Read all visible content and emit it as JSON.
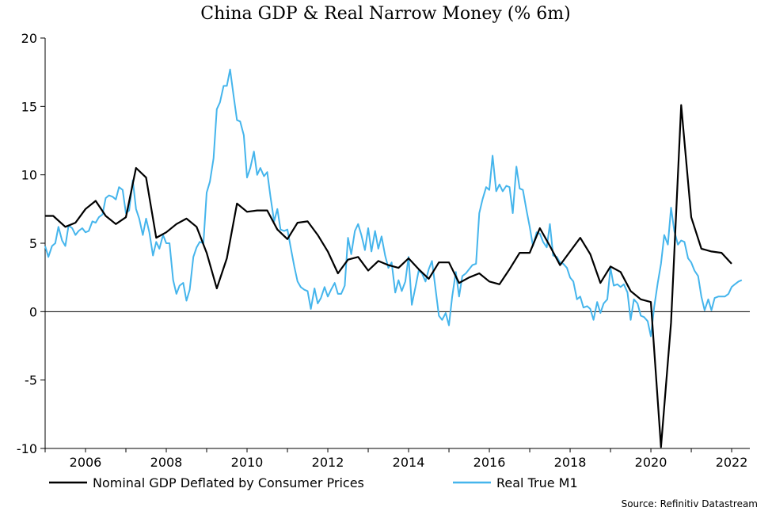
{
  "chart_data": {
    "type": "line",
    "title": "China GDP & Real Narrow Money (% 6m)",
    "xlabel": "",
    "ylabel": "",
    "xlim": [
      2005.0,
      2022.45
    ],
    "ylim": [
      -10,
      20
    ],
    "y_ticks": [
      -10,
      -5,
      0,
      5,
      10,
      15,
      20
    ],
    "x_ticks": [
      2006,
      2008,
      2010,
      2012,
      2014,
      2016,
      2018,
      2020,
      2022
    ],
    "zero_line": true,
    "grid": false,
    "legend": "bottom",
    "source": "Source: Refinitiv Datastream",
    "series": [
      {
        "name": "Nominal GDP Deflated by Consumer Prices",
        "color": "#000000",
        "points": [
          [
            2005.0,
            7.0
          ],
          [
            2005.2,
            7.0
          ],
          [
            2005.5,
            6.2
          ],
          [
            2005.75,
            6.5
          ],
          [
            2006.0,
            7.5
          ],
          [
            2006.25,
            8.1
          ],
          [
            2006.5,
            7.0
          ],
          [
            2006.75,
            6.4
          ],
          [
            2007.0,
            6.9
          ],
          [
            2007.25,
            10.5
          ],
          [
            2007.5,
            9.8
          ],
          [
            2007.75,
            5.4
          ],
          [
            2008.0,
            5.8
          ],
          [
            2008.25,
            6.4
          ],
          [
            2008.5,
            6.8
          ],
          [
            2008.75,
            6.2
          ],
          [
            2009.0,
            4.3
          ],
          [
            2009.25,
            1.7
          ],
          [
            2009.5,
            3.9
          ],
          [
            2009.75,
            7.9
          ],
          [
            2010.0,
            7.3
          ],
          [
            2010.25,
            7.4
          ],
          [
            2010.5,
            7.4
          ],
          [
            2010.75,
            6.0
          ],
          [
            2011.0,
            5.3
          ],
          [
            2011.25,
            6.5
          ],
          [
            2011.5,
            6.6
          ],
          [
            2011.75,
            5.6
          ],
          [
            2012.0,
            4.4
          ],
          [
            2012.25,
            2.8
          ],
          [
            2012.5,
            3.8
          ],
          [
            2012.75,
            4.0
          ],
          [
            2013.0,
            3.0
          ],
          [
            2013.25,
            3.7
          ],
          [
            2013.5,
            3.4
          ],
          [
            2013.75,
            3.2
          ],
          [
            2014.0,
            3.9
          ],
          [
            2014.25,
            3.1
          ],
          [
            2014.5,
            2.4
          ],
          [
            2014.75,
            3.6
          ],
          [
            2015.0,
            3.6
          ],
          [
            2015.25,
            2.1
          ],
          [
            2015.5,
            2.5
          ],
          [
            2015.75,
            2.8
          ],
          [
            2016.0,
            2.2
          ],
          [
            2016.25,
            2.0
          ],
          [
            2016.5,
            3.1
          ],
          [
            2016.75,
            4.3
          ],
          [
            2017.0,
            4.3
          ],
          [
            2017.25,
            6.1
          ],
          [
            2017.5,
            4.8
          ],
          [
            2017.75,
            3.4
          ],
          [
            2018.0,
            4.4
          ],
          [
            2018.25,
            5.4
          ],
          [
            2018.5,
            4.2
          ],
          [
            2018.75,
            2.1
          ],
          [
            2019.0,
            3.3
          ],
          [
            2019.25,
            2.9
          ],
          [
            2019.5,
            1.5
          ],
          [
            2019.75,
            0.9
          ],
          [
            2020.0,
            0.7
          ],
          [
            2020.25,
            -9.9
          ],
          [
            2020.5,
            -0.8
          ],
          [
            2020.75,
            15.1
          ],
          [
            2021.0,
            6.9
          ],
          [
            2021.25,
            4.6
          ],
          [
            2021.5,
            4.4
          ],
          [
            2021.75,
            4.3
          ],
          [
            2022.0,
            3.5
          ]
        ]
      },
      {
        "name": "Real True M1",
        "color": "#45b5ec",
        "points": [
          [
            2005.0,
            4.8
          ],
          [
            2005.08,
            4.0
          ],
          [
            2005.17,
            4.8
          ],
          [
            2005.25,
            5.0
          ],
          [
            2005.33,
            6.2
          ],
          [
            2005.42,
            5.2
          ],
          [
            2005.5,
            4.8
          ],
          [
            2005.58,
            6.3
          ],
          [
            2005.67,
            6.1
          ],
          [
            2005.75,
            5.6
          ],
          [
            2005.83,
            5.9
          ],
          [
            2005.92,
            6.1
          ],
          [
            2006.0,
            5.8
          ],
          [
            2006.08,
            5.9
          ],
          [
            2006.17,
            6.6
          ],
          [
            2006.25,
            6.5
          ],
          [
            2006.33,
            6.9
          ],
          [
            2006.42,
            7.1
          ],
          [
            2006.5,
            8.3
          ],
          [
            2006.58,
            8.5
          ],
          [
            2006.67,
            8.4
          ],
          [
            2006.75,
            8.2
          ],
          [
            2006.83,
            9.1
          ],
          [
            2006.92,
            8.9
          ],
          [
            2007.0,
            7.2
          ],
          [
            2007.08,
            7.4
          ],
          [
            2007.17,
            9.6
          ],
          [
            2007.25,
            7.5
          ],
          [
            2007.33,
            6.8
          ],
          [
            2007.42,
            5.6
          ],
          [
            2007.5,
            6.8
          ],
          [
            2007.58,
            5.8
          ],
          [
            2007.67,
            4.1
          ],
          [
            2007.75,
            5.1
          ],
          [
            2007.83,
            4.6
          ],
          [
            2007.92,
            5.6
          ],
          [
            2008.0,
            5.0
          ],
          [
            2008.08,
            5.0
          ],
          [
            2008.17,
            2.3
          ],
          [
            2008.25,
            1.3
          ],
          [
            2008.33,
            1.9
          ],
          [
            2008.42,
            2.1
          ],
          [
            2008.5,
            0.8
          ],
          [
            2008.58,
            1.6
          ],
          [
            2008.67,
            4.0
          ],
          [
            2008.75,
            4.7
          ],
          [
            2008.83,
            5.1
          ],
          [
            2008.92,
            5.0
          ],
          [
            2009.0,
            8.7
          ],
          [
            2009.08,
            9.5
          ],
          [
            2009.17,
            11.2
          ],
          [
            2009.25,
            14.8
          ],
          [
            2009.33,
            15.3
          ],
          [
            2009.42,
            16.5
          ],
          [
            2009.5,
            16.5
          ],
          [
            2009.58,
            17.7
          ],
          [
            2009.67,
            15.7
          ],
          [
            2009.75,
            14.0
          ],
          [
            2009.83,
            13.9
          ],
          [
            2009.92,
            12.9
          ],
          [
            2010.0,
            9.8
          ],
          [
            2010.08,
            10.5
          ],
          [
            2010.17,
            11.7
          ],
          [
            2010.25,
            10.0
          ],
          [
            2010.33,
            10.5
          ],
          [
            2010.42,
            9.9
          ],
          [
            2010.5,
            10.2
          ],
          [
            2010.58,
            8.4
          ],
          [
            2010.67,
            6.6
          ],
          [
            2010.75,
            7.5
          ],
          [
            2010.83,
            6.0
          ],
          [
            2010.92,
            5.9
          ],
          [
            2011.0,
            6.0
          ],
          [
            2011.08,
            4.7
          ],
          [
            2011.17,
            3.3
          ],
          [
            2011.25,
            2.2
          ],
          [
            2011.33,
            1.8
          ],
          [
            2011.42,
            1.6
          ],
          [
            2011.5,
            1.5
          ],
          [
            2011.58,
            0.2
          ],
          [
            2011.67,
            1.7
          ],
          [
            2011.75,
            0.6
          ],
          [
            2011.83,
            1.0
          ],
          [
            2011.92,
            1.8
          ],
          [
            2012.0,
            1.1
          ],
          [
            2012.08,
            1.6
          ],
          [
            2012.17,
            2.1
          ],
          [
            2012.25,
            1.3
          ],
          [
            2012.33,
            1.3
          ],
          [
            2012.42,
            1.9
          ],
          [
            2012.5,
            5.4
          ],
          [
            2012.58,
            4.2
          ],
          [
            2012.67,
            5.9
          ],
          [
            2012.75,
            6.4
          ],
          [
            2012.83,
            5.6
          ],
          [
            2012.92,
            4.5
          ],
          [
            2013.0,
            6.1
          ],
          [
            2013.08,
            4.4
          ],
          [
            2013.17,
            5.9
          ],
          [
            2013.25,
            4.6
          ],
          [
            2013.33,
            5.5
          ],
          [
            2013.42,
            4.1
          ],
          [
            2013.5,
            3.2
          ],
          [
            2013.58,
            3.6
          ],
          [
            2013.67,
            1.4
          ],
          [
            2013.75,
            2.3
          ],
          [
            2013.83,
            1.5
          ],
          [
            2013.92,
            2.2
          ],
          [
            2014.0,
            4.0
          ],
          [
            2014.08,
            0.5
          ],
          [
            2014.17,
            1.8
          ],
          [
            2014.25,
            3.0
          ],
          [
            2014.33,
            2.8
          ],
          [
            2014.42,
            2.2
          ],
          [
            2014.5,
            3.1
          ],
          [
            2014.58,
            3.7
          ],
          [
            2014.67,
            1.6
          ],
          [
            2014.75,
            -0.3
          ],
          [
            2014.83,
            -0.6
          ],
          [
            2014.92,
            -0.1
          ],
          [
            2015.0,
            -1.0
          ],
          [
            2015.08,
            1.1
          ],
          [
            2015.17,
            2.9
          ],
          [
            2015.25,
            1.1
          ],
          [
            2015.33,
            2.6
          ],
          [
            2015.42,
            2.8
          ],
          [
            2015.5,
            3.1
          ],
          [
            2015.58,
            3.4
          ],
          [
            2015.67,
            3.5
          ],
          [
            2015.75,
            7.2
          ],
          [
            2015.83,
            8.2
          ],
          [
            2015.92,
            9.1
          ],
          [
            2016.0,
            8.9
          ],
          [
            2016.08,
            11.4
          ],
          [
            2016.17,
            8.8
          ],
          [
            2016.25,
            9.3
          ],
          [
            2016.33,
            8.8
          ],
          [
            2016.42,
            9.2
          ],
          [
            2016.5,
            9.1
          ],
          [
            2016.58,
            7.2
          ],
          [
            2016.67,
            10.6
          ],
          [
            2016.75,
            9.0
          ],
          [
            2016.83,
            8.9
          ],
          [
            2016.92,
            7.4
          ],
          [
            2017.0,
            6.2
          ],
          [
            2017.08,
            4.8
          ],
          [
            2017.17,
            5.8
          ],
          [
            2017.25,
            5.7
          ],
          [
            2017.33,
            5.1
          ],
          [
            2017.42,
            4.7
          ],
          [
            2017.5,
            6.4
          ],
          [
            2017.58,
            4.1
          ],
          [
            2017.67,
            4.0
          ],
          [
            2017.75,
            3.6
          ],
          [
            2017.83,
            3.5
          ],
          [
            2017.92,
            3.2
          ],
          [
            2018.0,
            2.5
          ],
          [
            2018.08,
            2.2
          ],
          [
            2018.17,
            0.9
          ],
          [
            2018.25,
            1.1
          ],
          [
            2018.33,
            0.3
          ],
          [
            2018.42,
            0.4
          ],
          [
            2018.5,
            0.2
          ],
          [
            2018.58,
            -0.6
          ],
          [
            2018.67,
            0.7
          ],
          [
            2018.75,
            -0.1
          ],
          [
            2018.83,
            0.6
          ],
          [
            2018.92,
            0.9
          ],
          [
            2019.0,
            3.2
          ],
          [
            2019.08,
            1.9
          ],
          [
            2019.17,
            2.0
          ],
          [
            2019.25,
            1.8
          ],
          [
            2019.33,
            2.0
          ],
          [
            2019.42,
            1.4
          ],
          [
            2019.5,
            -0.6
          ],
          [
            2019.58,
            0.9
          ],
          [
            2019.67,
            0.6
          ],
          [
            2019.75,
            -0.3
          ],
          [
            2019.83,
            -0.4
          ],
          [
            2019.92,
            -0.7
          ],
          [
            2020.0,
            -1.8
          ],
          [
            2020.08,
            0.3
          ],
          [
            2020.17,
            2.1
          ],
          [
            2020.25,
            3.5
          ],
          [
            2020.33,
            5.6
          ],
          [
            2020.42,
            4.9
          ],
          [
            2020.5,
            7.6
          ],
          [
            2020.58,
            5.9
          ],
          [
            2020.67,
            4.9
          ],
          [
            2020.75,
            5.2
          ],
          [
            2020.83,
            5.1
          ],
          [
            2020.92,
            3.9
          ],
          [
            2021.0,
            3.6
          ],
          [
            2021.08,
            3.0
          ],
          [
            2021.17,
            2.6
          ],
          [
            2021.25,
            1.1
          ],
          [
            2021.33,
            0.1
          ],
          [
            2021.42,
            0.9
          ],
          [
            2021.5,
            0.1
          ],
          [
            2021.58,
            1.0
          ],
          [
            2021.67,
            1.1
          ],
          [
            2021.75,
            1.1
          ],
          [
            2021.83,
            1.1
          ],
          [
            2021.92,
            1.3
          ],
          [
            2022.0,
            1.8
          ],
          [
            2022.08,
            2.0
          ],
          [
            2022.17,
            2.2
          ],
          [
            2022.25,
            2.3
          ]
        ]
      }
    ]
  }
}
